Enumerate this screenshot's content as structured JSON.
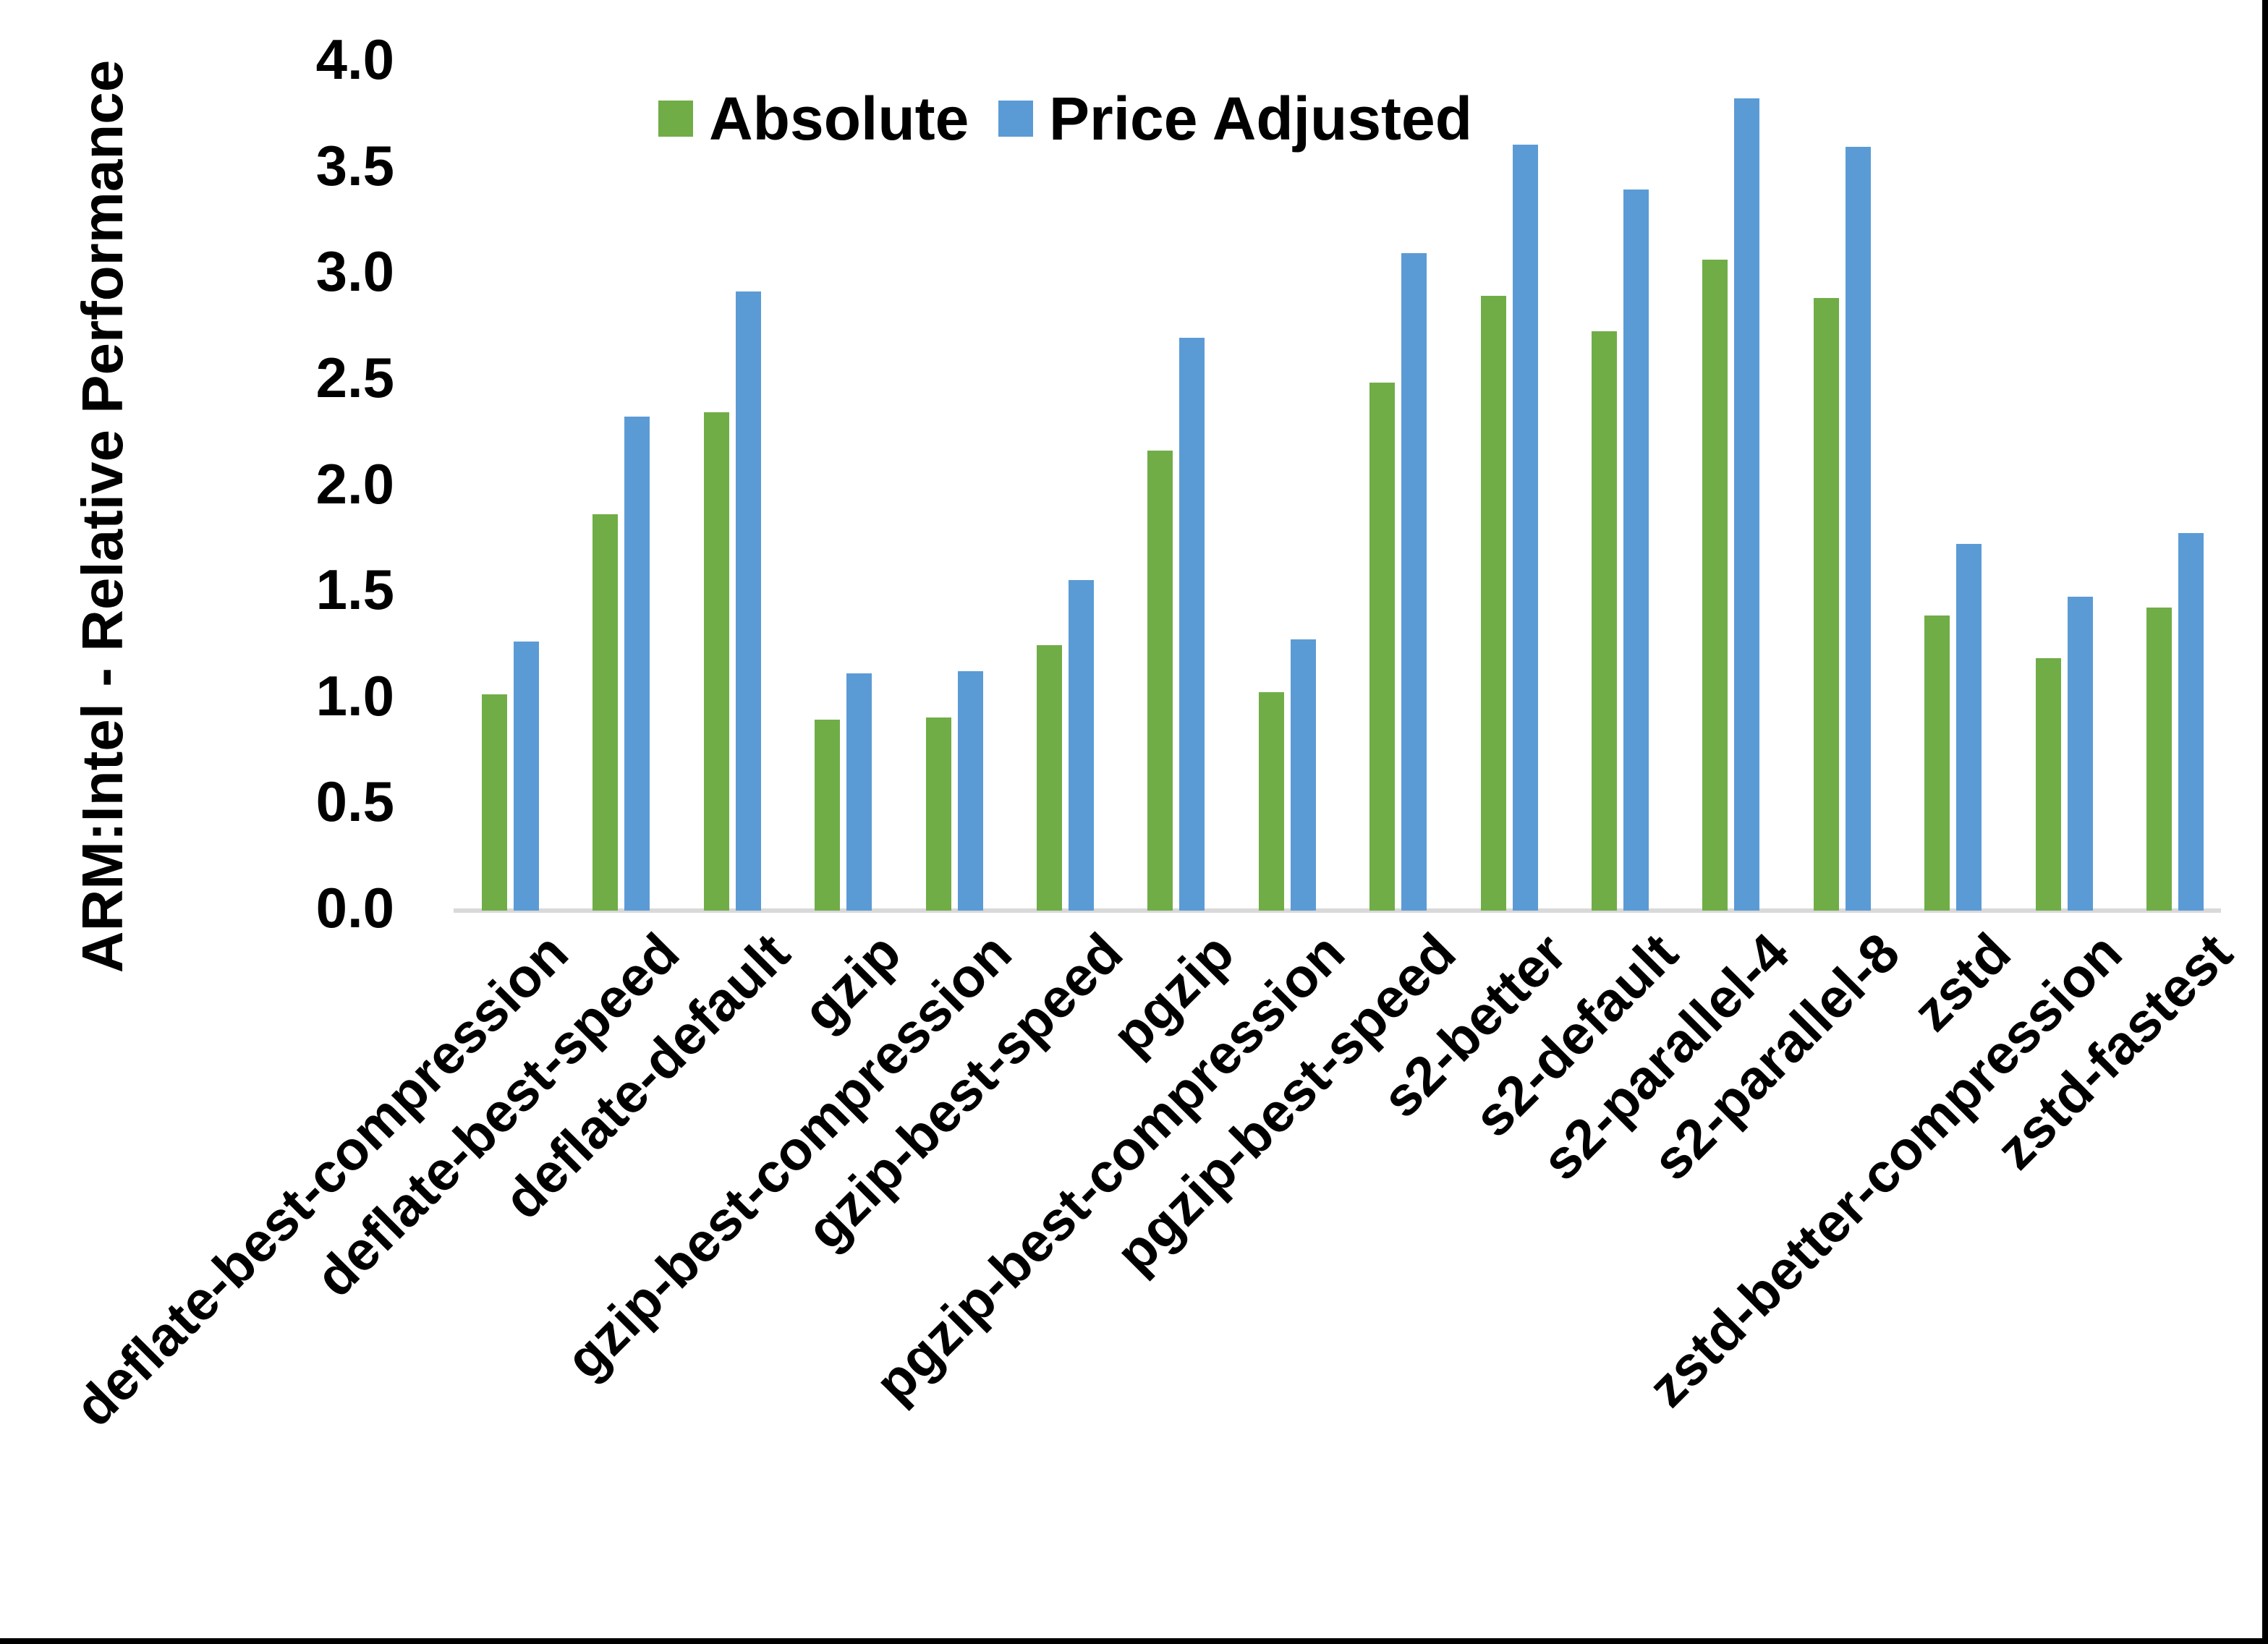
{
  "chart_data": {
    "type": "bar",
    "title": "",
    "xlabel": "",
    "ylabel": "ARM:Intel - Relative Performance",
    "ylim": [
      0.0,
      4.0
    ],
    "ytick_step": 0.5,
    "yticks": [
      "0.0",
      "0.5",
      "1.0",
      "1.5",
      "2.0",
      "2.5",
      "3.0",
      "3.5",
      "4.0"
    ],
    "grid": false,
    "legend_position": "top-center",
    "categories": [
      "deflate-best-compression",
      "deflate-best-speed",
      "deflate-default",
      "gzip",
      "gzip-best-compression",
      "gzip-best-speed",
      "pgzip",
      "pgzip-best-compression",
      "pgzip-best-speed",
      "s2-better",
      "s2-default",
      "s2-parallel-4",
      "s2-parallel-8",
      "zstd",
      "zstd-better-compression",
      "zstd-fastest"
    ],
    "series": [
      {
        "name": "Absolute",
        "color": "#70AD47",
        "values": [
          1.02,
          1.87,
          2.35,
          0.9,
          0.91,
          1.25,
          2.17,
          1.03,
          2.49,
          2.9,
          2.73,
          3.07,
          2.89,
          1.39,
          1.19,
          1.43
        ]
      },
      {
        "name": "Price Adjusted",
        "color": "#5B9BD5",
        "values": [
          1.27,
          2.33,
          2.92,
          1.12,
          1.13,
          1.56,
          2.7,
          1.28,
          3.1,
          3.61,
          3.4,
          3.83,
          3.6,
          1.73,
          1.48,
          1.78
        ]
      }
    ]
  },
  "legend": {
    "items": [
      {
        "label": "Absolute",
        "color": "#70AD47"
      },
      {
        "label": "Price Adjusted",
        "color": "#5B9BD5"
      }
    ]
  },
  "colors": {
    "axis_line": "#d9d9d9",
    "text": "#000000",
    "background": "#ffffff",
    "frame": "#000000"
  }
}
